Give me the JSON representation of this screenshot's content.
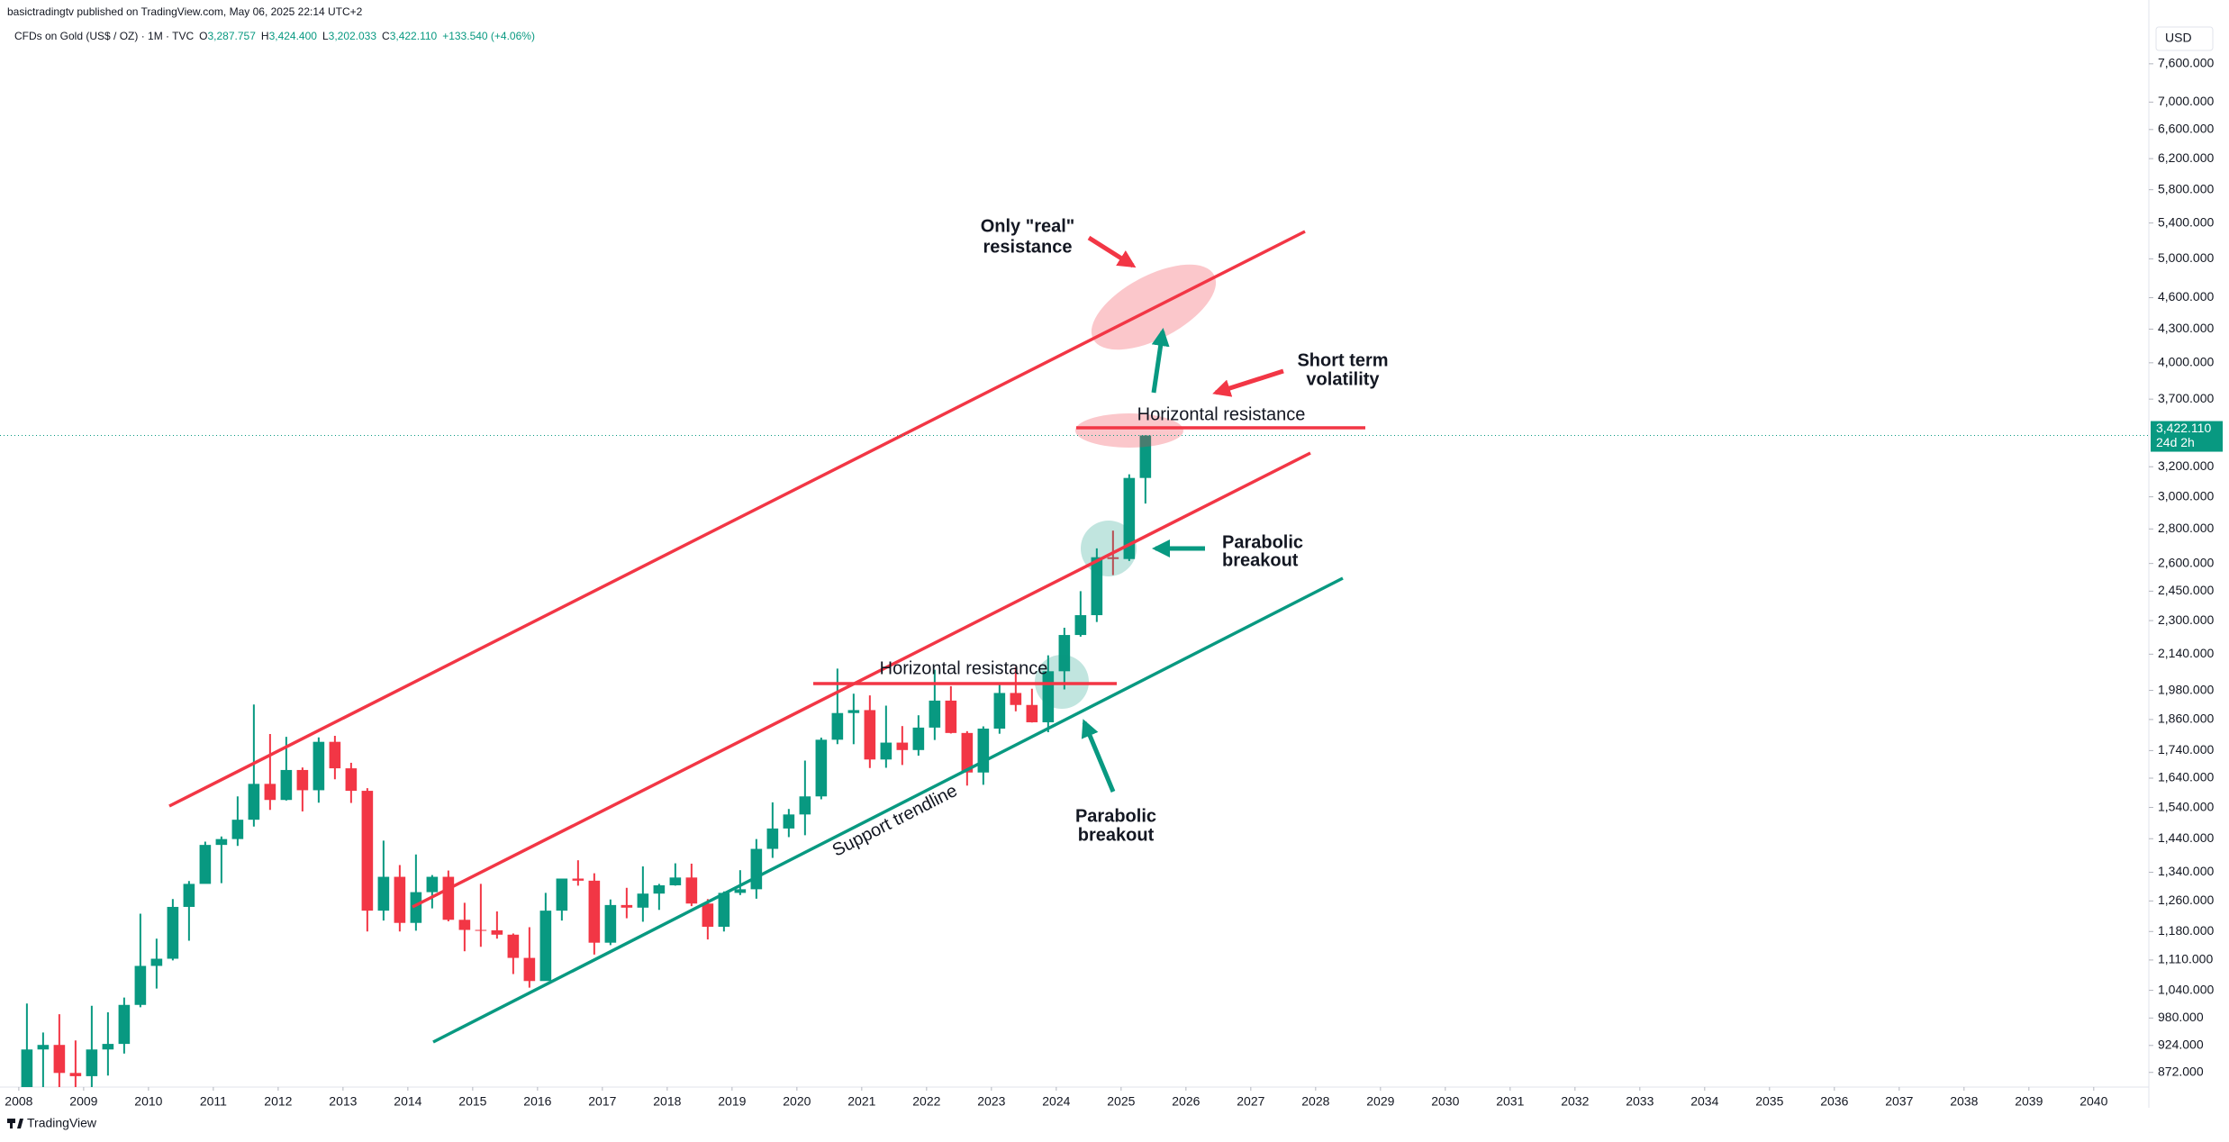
{
  "header": {
    "author_line": "basictradingtv published on TradingView.com, May 06, 2025 22:14 UTC+2",
    "symbol": "CFDs on Gold (US$ / OZ) · 1M · TVC",
    "ohlc": [
      {
        "key": "O",
        "value": "3,287.757"
      },
      {
        "key": "H",
        "value": "3,424.400"
      },
      {
        "key": "L",
        "value": "3,202.033"
      },
      {
        "key": "C",
        "value": "3,422.110"
      }
    ],
    "change": "+133.540 (+4.06%)",
    "footer": "TradingView"
  },
  "chart_data": {
    "type": "candlestick",
    "log_scale": true,
    "grid": false,
    "currency": "USD",
    "colors": {
      "up": "#089981",
      "down": "#f23645"
    },
    "x": [
      2008,
      2008.25,
      2008.5,
      2008.75,
      2009,
      2009.25,
      2009.5,
      2009.75,
      2010,
      2010.25,
      2010.5,
      2010.75,
      2011,
      2011.25,
      2011.5,
      2011.75,
      2012,
      2012.25,
      2012.5,
      2012.75,
      2013,
      2013.25,
      2013.5,
      2013.75,
      2014,
      2014.25,
      2014.5,
      2014.75,
      2015,
      2015.25,
      2015.5,
      2015.75,
      2016,
      2016.25,
      2016.5,
      2016.75,
      2017,
      2017.25,
      2017.5,
      2017.75,
      2018,
      2018.25,
      2018.5,
      2018.75,
      2019,
      2019.25,
      2019.5,
      2019.75,
      2020,
      2020.25,
      2020.5,
      2020.75,
      2021,
      2021.25,
      2021.5,
      2021.75,
      2022,
      2022.25,
      2022.5,
      2022.75,
      2023,
      2023.25,
      2023.5,
      2023.75,
      2024,
      2024.25,
      2024.5,
      2024.75,
      2025,
      2025.25
    ],
    "open": [
      834,
      916,
      925,
      871,
      865,
      916,
      927,
      1008,
      1096,
      1113,
      1244,
      1307,
      1421,
      1439,
      1500,
      1620,
      1565,
      1669,
      1598,
      1773,
      1675,
      1596,
      1234,
      1327,
      1202,
      1284,
      1327,
      1210,
      1184,
      1183,
      1172,
      1115,
      1061,
      1234,
      1322,
      1316,
      1152,
      1249,
      1242,
      1280,
      1303,
      1325,
      1253,
      1192,
      1282,
      1292,
      1409,
      1472,
      1517,
      1577,
      1781,
      1886,
      1898,
      1707,
      1770,
      1742,
      1828,
      1937,
      1807,
      1660,
      1824,
      1969,
      1919,
      1849,
      2063,
      2230,
      2327,
      2635,
      2625,
      3124
    ],
    "high": [
      1011,
      950,
      988,
      934,
      1006,
      992,
      1024,
      1226,
      1162,
      1265,
      1315,
      1431,
      1447,
      1577,
      1921,
      1803,
      1792,
      1678,
      1790,
      1796,
      1695,
      1605,
      1434,
      1361,
      1392,
      1332,
      1345,
      1255,
      1307,
      1232,
      1175,
      1191,
      1282,
      1315,
      1375,
      1337,
      1264,
      1296,
      1357,
      1307,
      1366,
      1365,
      1265,
      1286,
      1346,
      1439,
      1557,
      1535,
      1703,
      1789,
      2075,
      1966,
      1959,
      1916,
      1834,
      1877,
      2070,
      1998,
      1814,
      1833,
      2009,
      2081,
      1987,
      2135,
      2265,
      2450,
      2686,
      2790,
      3149,
      3424.4
    ],
    "low": [
      800,
      845,
      735,
      681,
      802,
      866,
      908,
      1003,
      1044,
      1109,
      1157,
      1313,
      1309,
      1418,
      1478,
      1532,
      1563,
      1527,
      1556,
      1636,
      1555,
      1180,
      1208,
      1180,
      1182,
      1240,
      1206,
      1131,
      1142,
      1162,
      1077,
      1046,
      1062,
      1208,
      1302,
      1123,
      1146,
      1214,
      1205,
      1236,
      1302,
      1246,
      1160,
      1180,
      1276,
      1266,
      1382,
      1445,
      1451,
      1567,
      1764,
      1764,
      1676,
      1677,
      1687,
      1721,
      1780,
      1805,
      1614,
      1617,
      1804,
      1893,
      1848,
      1810,
      1984,
      2222,
      2293,
      2536,
      2614,
      2957
    ],
    "close": [
      916,
      925,
      871,
      865,
      916,
      927,
      1008,
      1096,
      1113,
      1244,
      1307,
      1421,
      1439,
      1500,
      1620,
      1565,
      1669,
      1598,
      1773,
      1675,
      1596,
      1234,
      1327,
      1202,
      1284,
      1327,
      1210,
      1184,
      1183,
      1172,
      1115,
      1061,
      1234,
      1322,
      1316,
      1152,
      1249,
      1242,
      1280,
      1303,
      1325,
      1253,
      1192,
      1282,
      1292,
      1409,
      1472,
      1517,
      1577,
      1781,
      1886,
      1898,
      1707,
      1770,
      1742,
      1828,
      1937,
      1807,
      1660,
      1824,
      1969,
      1919,
      1849,
      2063,
      2230,
      2327,
      2635,
      2625,
      3124,
      3422.11
    ],
    "xlim": [
      2007.71,
      2040.85
    ],
    "xticks": [
      2008,
      2009,
      2010,
      2011,
      2012,
      2013,
      2014,
      2015,
      2016,
      2017,
      2018,
      2019,
      2020,
      2021,
      2022,
      2023,
      2024,
      2025,
      2026,
      2027,
      2028,
      2029,
      2030,
      2031,
      2032,
      2033,
      2034,
      2035,
      2036,
      2037,
      2038,
      2039,
      2040
    ],
    "ylim": [
      845,
      8450
    ],
    "yticks": [
      {
        "value": 7600,
        "label": "7,600.000"
      },
      {
        "value": 7000,
        "label": "7,000.000"
      },
      {
        "value": 6600,
        "label": "6,600.000"
      },
      {
        "value": 6200,
        "label": "6,200.000"
      },
      {
        "value": 5800,
        "label": "5,800.000"
      },
      {
        "value": 5400,
        "label": "5,400.000"
      },
      {
        "value": 5000,
        "label": "5,000.000"
      },
      {
        "value": 4600,
        "label": "4,600.000"
      },
      {
        "value": 4300,
        "label": "4,300.000"
      },
      {
        "value": 4000,
        "label": "4,000.000"
      },
      {
        "value": 3700,
        "label": "3,700.000"
      },
      {
        "value": 3200,
        "label": "3,200.000"
      },
      {
        "value": 3000,
        "label": "3,000.000"
      },
      {
        "value": 2800,
        "label": "2,800.000"
      },
      {
        "value": 2600,
        "label": "2,600.000"
      },
      {
        "value": 2450,
        "label": "2,450.000"
      },
      {
        "value": 2300,
        "label": "2,300.000"
      },
      {
        "value": 2140,
        "label": "2,140.000"
      },
      {
        "value": 1980,
        "label": "1,980.000"
      },
      {
        "value": 1860,
        "label": "1,860.000"
      },
      {
        "value": 1740,
        "label": "1,740.000"
      },
      {
        "value": 1640,
        "label": "1,640.000"
      },
      {
        "value": 1540,
        "label": "1,540.000"
      },
      {
        "value": 1440,
        "label": "1,440.000"
      },
      {
        "value": 1340,
        "label": "1,340.000"
      },
      {
        "value": 1260,
        "label": "1,260.000"
      },
      {
        "value": 1180,
        "label": "1,180.000"
      },
      {
        "value": 1110,
        "label": "1,110.000"
      },
      {
        "value": 1040,
        "label": "1,040.000"
      },
      {
        "value": 980,
        "label": "980.000"
      },
      {
        "value": 924,
        "label": "924.000"
      },
      {
        "value": 872,
        "label": "872.000"
      }
    ],
    "last_price": {
      "value": 3422.11,
      "label": "3,422.110"
    },
    "countdown": "24d 2h",
    "annotations": [
      "Only \"real\"",
      "resistance",
      "Short term",
      "volatility",
      "Horizontal resistance",
      "Parabolic",
      "breakout",
      "Horizontal resistance",
      "Support trendline",
      "Parabolic",
      "breakout"
    ]
  }
}
